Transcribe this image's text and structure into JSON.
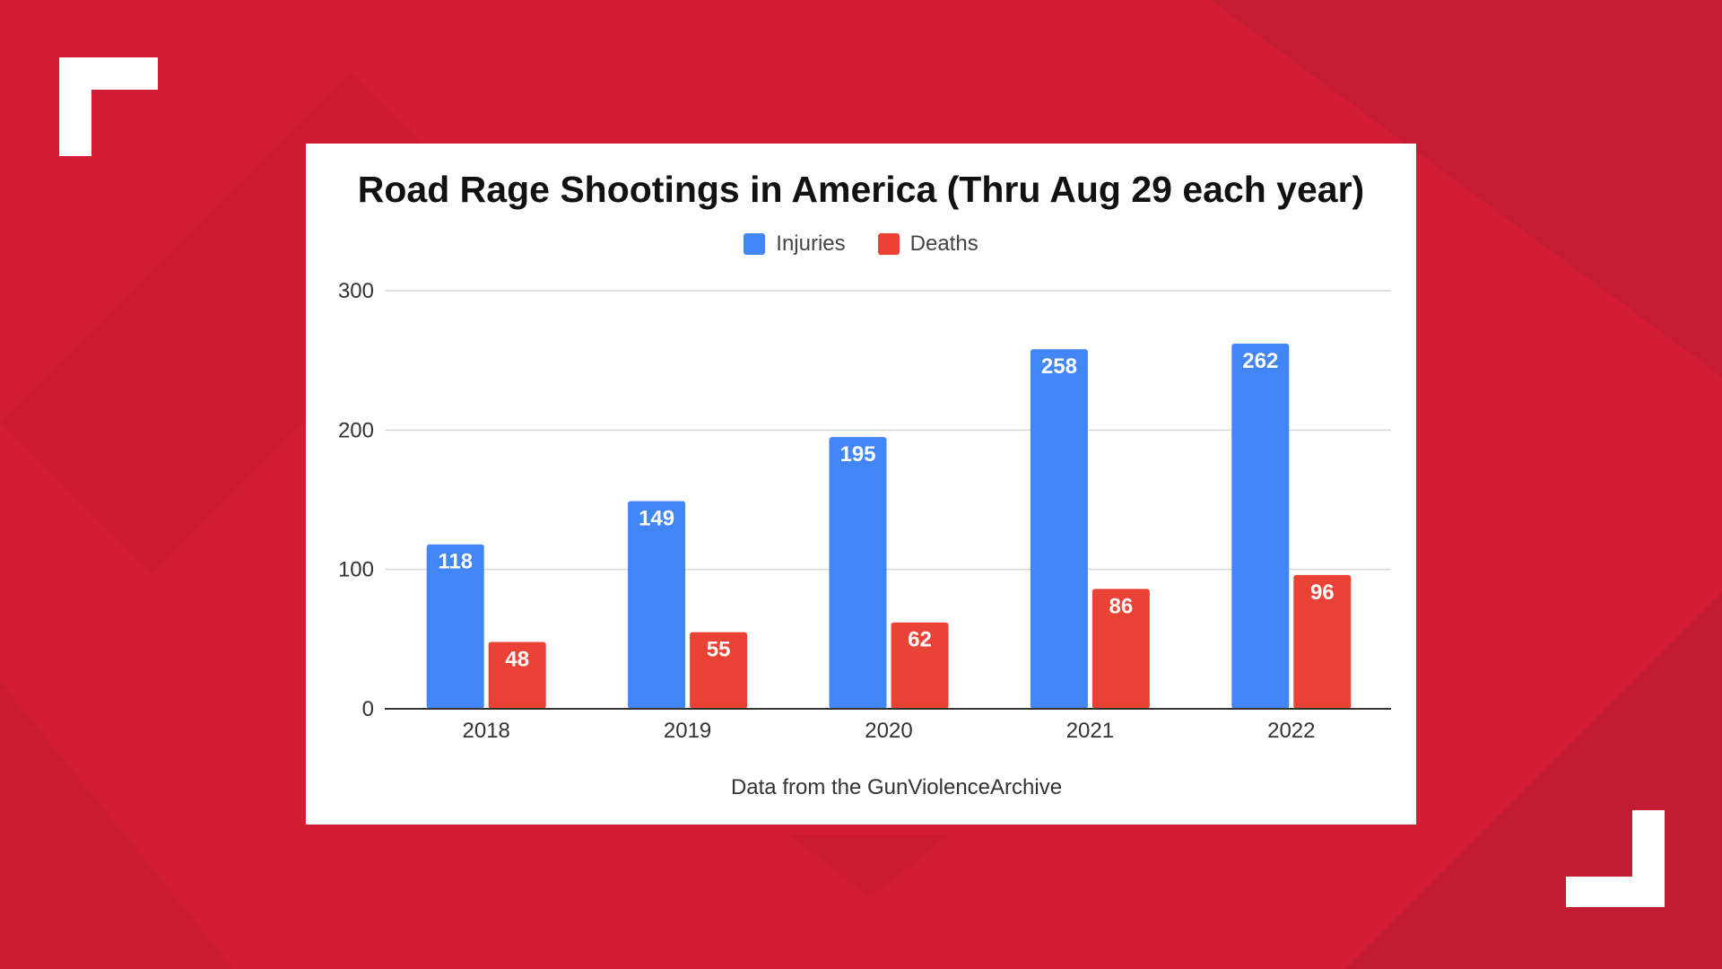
{
  "colors": {
    "background": "#d11c33",
    "injuries": "#4285f4",
    "deaths": "#ea4335",
    "gridline": "#d9d9d9",
    "axis": "#333333"
  },
  "source_note": "Data from the GunViolenceArchive",
  "chart_data": {
    "type": "bar",
    "title": "Road Rage Shootings in America (Thru Aug 29 each year)",
    "categories": [
      "2018",
      "2019",
      "2020",
      "2021",
      "2022"
    ],
    "series": [
      {
        "name": "Injuries",
        "values": [
          118,
          149,
          195,
          258,
          262
        ]
      },
      {
        "name": "Deaths",
        "values": [
          48,
          55,
          62,
          86,
          96
        ]
      }
    ],
    "ylim": [
      0,
      300
    ],
    "yticks": [
      0,
      100,
      200,
      300
    ],
    "xlabel": "",
    "ylabel": "",
    "grid": true,
    "legend": "top-center"
  }
}
